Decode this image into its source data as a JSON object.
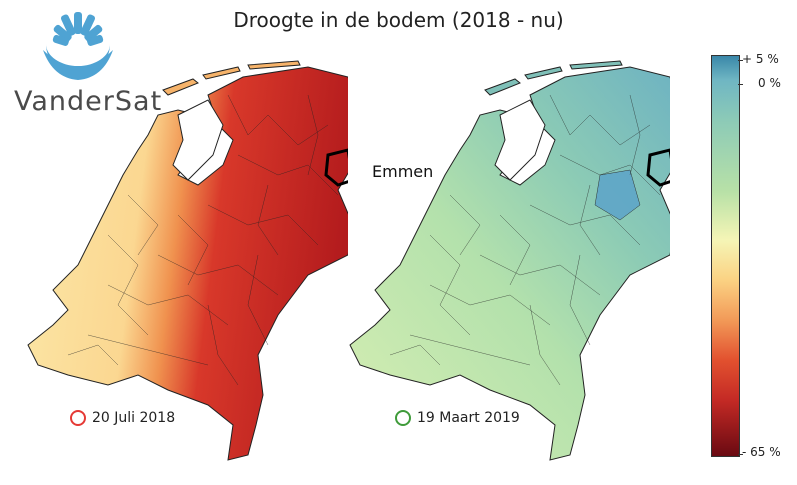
{
  "title": "Droogte in de bodem (2018 - nu)",
  "logo": {
    "text": "VanderSat",
    "icon": "sun-rays-logo-icon",
    "color": "#4fa3d3"
  },
  "annotation": {
    "label": "Emmen"
  },
  "maps": [
    {
      "caption": "20 Juli 2018",
      "ring_color": "#e53935",
      "palette": {
        "west": "#fbe6a6",
        "middle": "#f4a261",
        "east": "#d4302a",
        "deep": "#a8141a"
      }
    },
    {
      "caption": "19 Maart 2019",
      "ring_color": "#3f9b3a",
      "palette": {
        "west": "#d8efb0",
        "middle": "#a9dbb0",
        "east": "#7fc3b6",
        "deep": "#4f9fc4"
      }
    }
  ],
  "colorbar": {
    "max_label": "+ 5 %",
    "zero_label": "0 %",
    "min_label": "- 65 %"
  }
}
